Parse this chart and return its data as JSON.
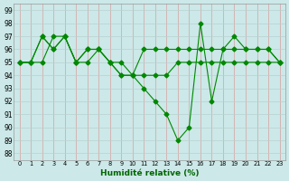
{
  "line1": {
    "x": [
      0,
      1,
      2,
      3,
      4,
      5,
      6,
      7,
      8,
      9,
      10,
      11,
      12,
      13,
      14,
      15,
      16,
      17,
      18,
      19,
      20,
      21,
      22,
      23
    ],
    "y": [
      95,
      95,
      95,
      97,
      97,
      95,
      95,
      96,
      95,
      95,
      94,
      94,
      94,
      94,
      95,
      95,
      95,
      95,
      95,
      95,
      95,
      95,
      95,
      95
    ]
  },
  "line2": {
    "x": [
      0,
      1,
      2,
      3,
      4,
      5,
      6,
      7,
      8,
      9,
      10,
      11,
      12,
      13,
      14,
      15,
      16,
      17,
      18,
      19,
      20,
      21,
      22,
      23
    ],
    "y": [
      95,
      95,
      97,
      96,
      97,
      95,
      96,
      96,
      95,
      94,
      94,
      93,
      92,
      91,
      89,
      90,
      98,
      92,
      96,
      97,
      96,
      96,
      96,
      95
    ]
  },
  "line3": {
    "x": [
      0,
      1,
      2,
      3,
      4,
      5,
      6,
      7,
      8,
      9,
      10,
      11,
      12,
      13,
      14,
      15,
      16,
      17,
      18,
      19,
      20,
      21,
      22,
      23
    ],
    "y": [
      95,
      95,
      97,
      96,
      97,
      95,
      96,
      96,
      95,
      94,
      94,
      96,
      96,
      96,
      96,
      96,
      96,
      96,
      96,
      96,
      96,
      96,
      96,
      95
    ]
  },
  "bg_color": "#cce8e8",
  "vgrid_color": "#d8a0a0",
  "hgrid_color": "#b8d0d0",
  "line_color": "#008800",
  "marker": "D",
  "marker_size": 2.5,
  "xlim": [
    -0.5,
    23.5
  ],
  "ylim": [
    87.5,
    99.5
  ],
  "yticks": [
    88,
    89,
    90,
    91,
    92,
    93,
    94,
    95,
    96,
    97,
    98,
    99
  ],
  "xticks": [
    0,
    1,
    2,
    3,
    4,
    5,
    6,
    7,
    8,
    9,
    10,
    11,
    12,
    13,
    14,
    15,
    16,
    17,
    18,
    19,
    20,
    21,
    22,
    23
  ],
  "xlabel": "Humidité relative (%)",
  "xlabel_color": "#006600"
}
